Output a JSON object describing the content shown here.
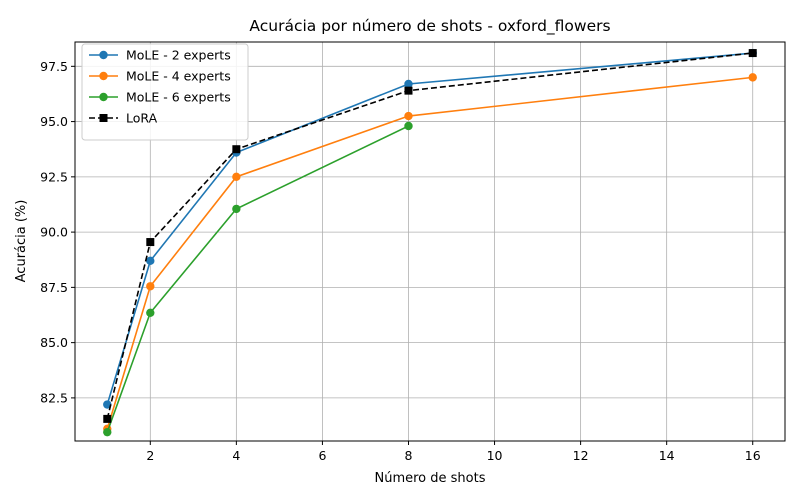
{
  "chart_data": {
    "type": "line",
    "title": "Acurácia por número de shots - oxford_flowers",
    "xlabel": "Número de shots",
    "ylabel": "Acurácia (%)",
    "xlim": [
      0.25,
      16.75
    ],
    "ylim": [
      80.55,
      98.6
    ],
    "xticks": [
      2,
      4,
      6,
      8,
      10,
      12,
      14,
      16
    ],
    "yticks": [
      82.5,
      85.0,
      87.5,
      90.0,
      92.5,
      95.0,
      97.5
    ],
    "ytick_labels": [
      "82.5",
      "85.0",
      "87.5",
      "90.0",
      "92.5",
      "95.0",
      "97.5"
    ],
    "grid": true,
    "legend_position": "top-left",
    "x": [
      1,
      2,
      4,
      8,
      16
    ],
    "series": [
      {
        "name": "MoLE - 2 experts",
        "color": "#1f77b4",
        "marker": "circle",
        "dash": "solid",
        "values": [
          82.2,
          88.7,
          93.6,
          96.7,
          98.1
        ]
      },
      {
        "name": "MoLE - 4 experts",
        "color": "#ff7f0e",
        "marker": "circle",
        "dash": "solid",
        "values": [
          81.1,
          87.55,
          92.5,
          95.25,
          97.0
        ]
      },
      {
        "name": "MoLE - 6 experts",
        "color": "#2ca02c",
        "marker": "circle",
        "dash": "solid",
        "x": [
          1,
          2,
          4,
          8
        ],
        "values": [
          80.95,
          86.35,
          91.05,
          94.8
        ]
      },
      {
        "name": "LoRA",
        "color": "#000000",
        "marker": "square",
        "dash": "dashed",
        "values": [
          81.55,
          89.55,
          93.75,
          96.4,
          98.1
        ]
      }
    ]
  }
}
